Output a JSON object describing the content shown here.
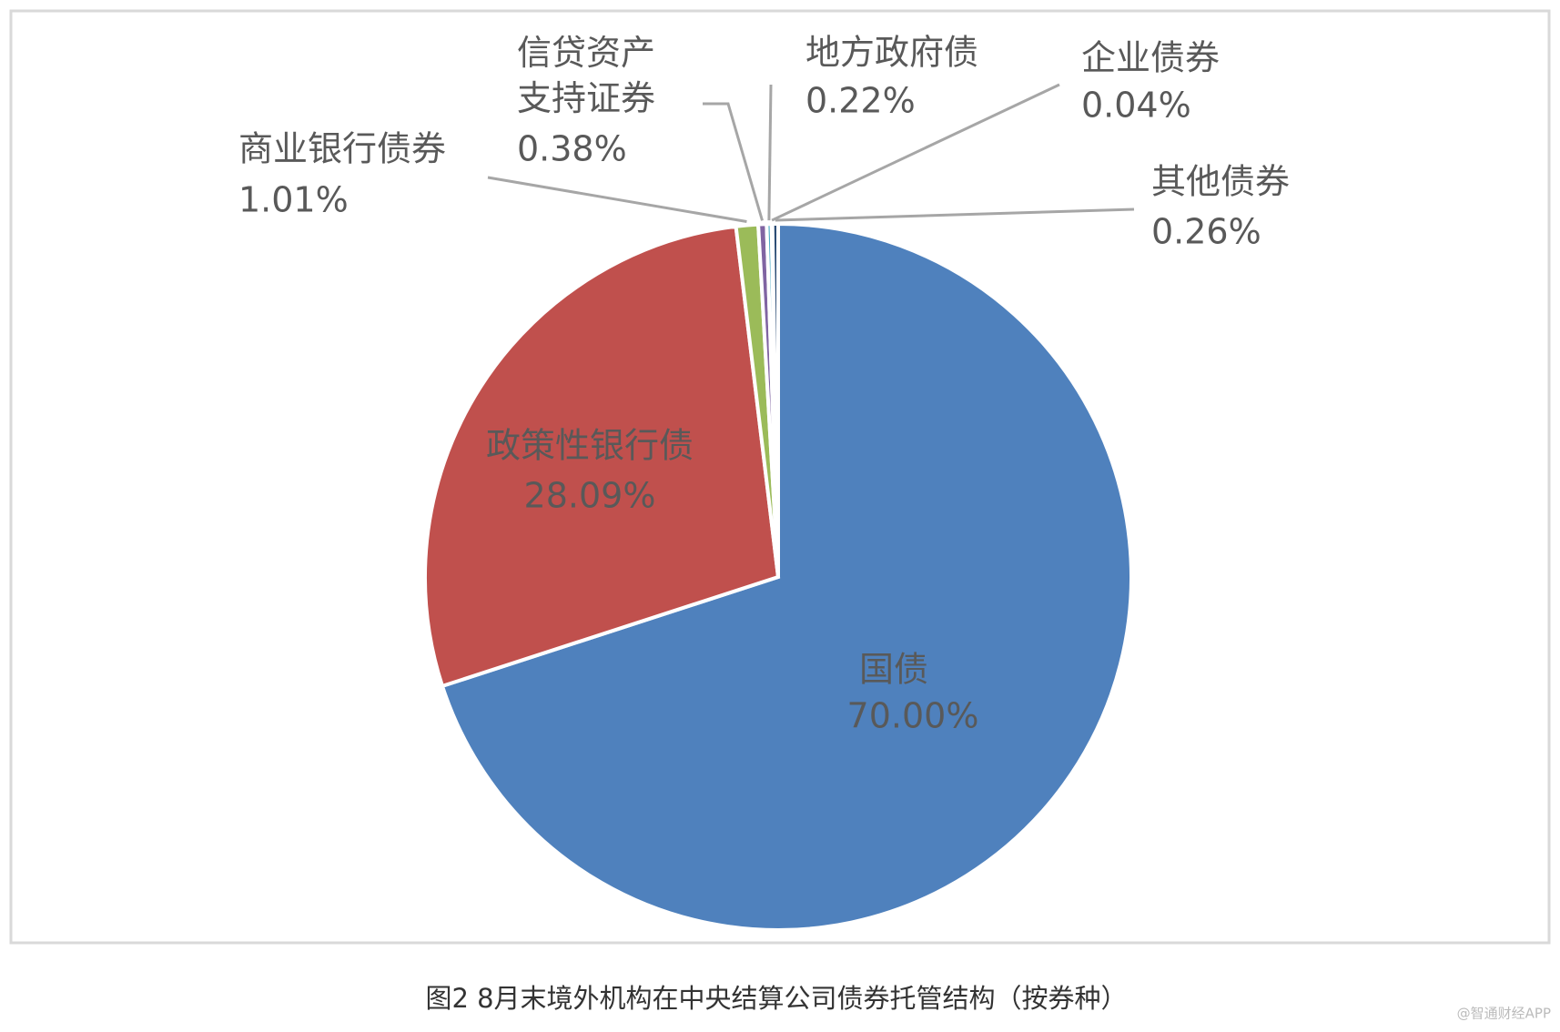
{
  "chart_data": {
    "type": "pie",
    "categories": [
      "国债",
      "政策性银行债",
      "商业银行债券",
      "信贷资产\n支持证券",
      "地方政府债",
      "企业债券",
      "其他债券"
    ],
    "values": [
      70.0,
      28.09,
      1.01,
      0.38,
      0.22,
      0.04,
      0.26
    ],
    "value_labels": [
      "70.00%",
      "28.09%",
      "1.01%",
      "0.38%",
      "0.22%",
      "0.04%",
      "0.26%"
    ],
    "colors": [
      "#4f81bd",
      "#c0504d",
      "#9bbb59",
      "#8064a2",
      "#4bacc6",
      "#f79646",
      "#2c4d75"
    ]
  },
  "caption": "图2 8月末境外机构在中央结算公司债券托管结构（按券种）",
  "watermark": "@智通财经APP"
}
